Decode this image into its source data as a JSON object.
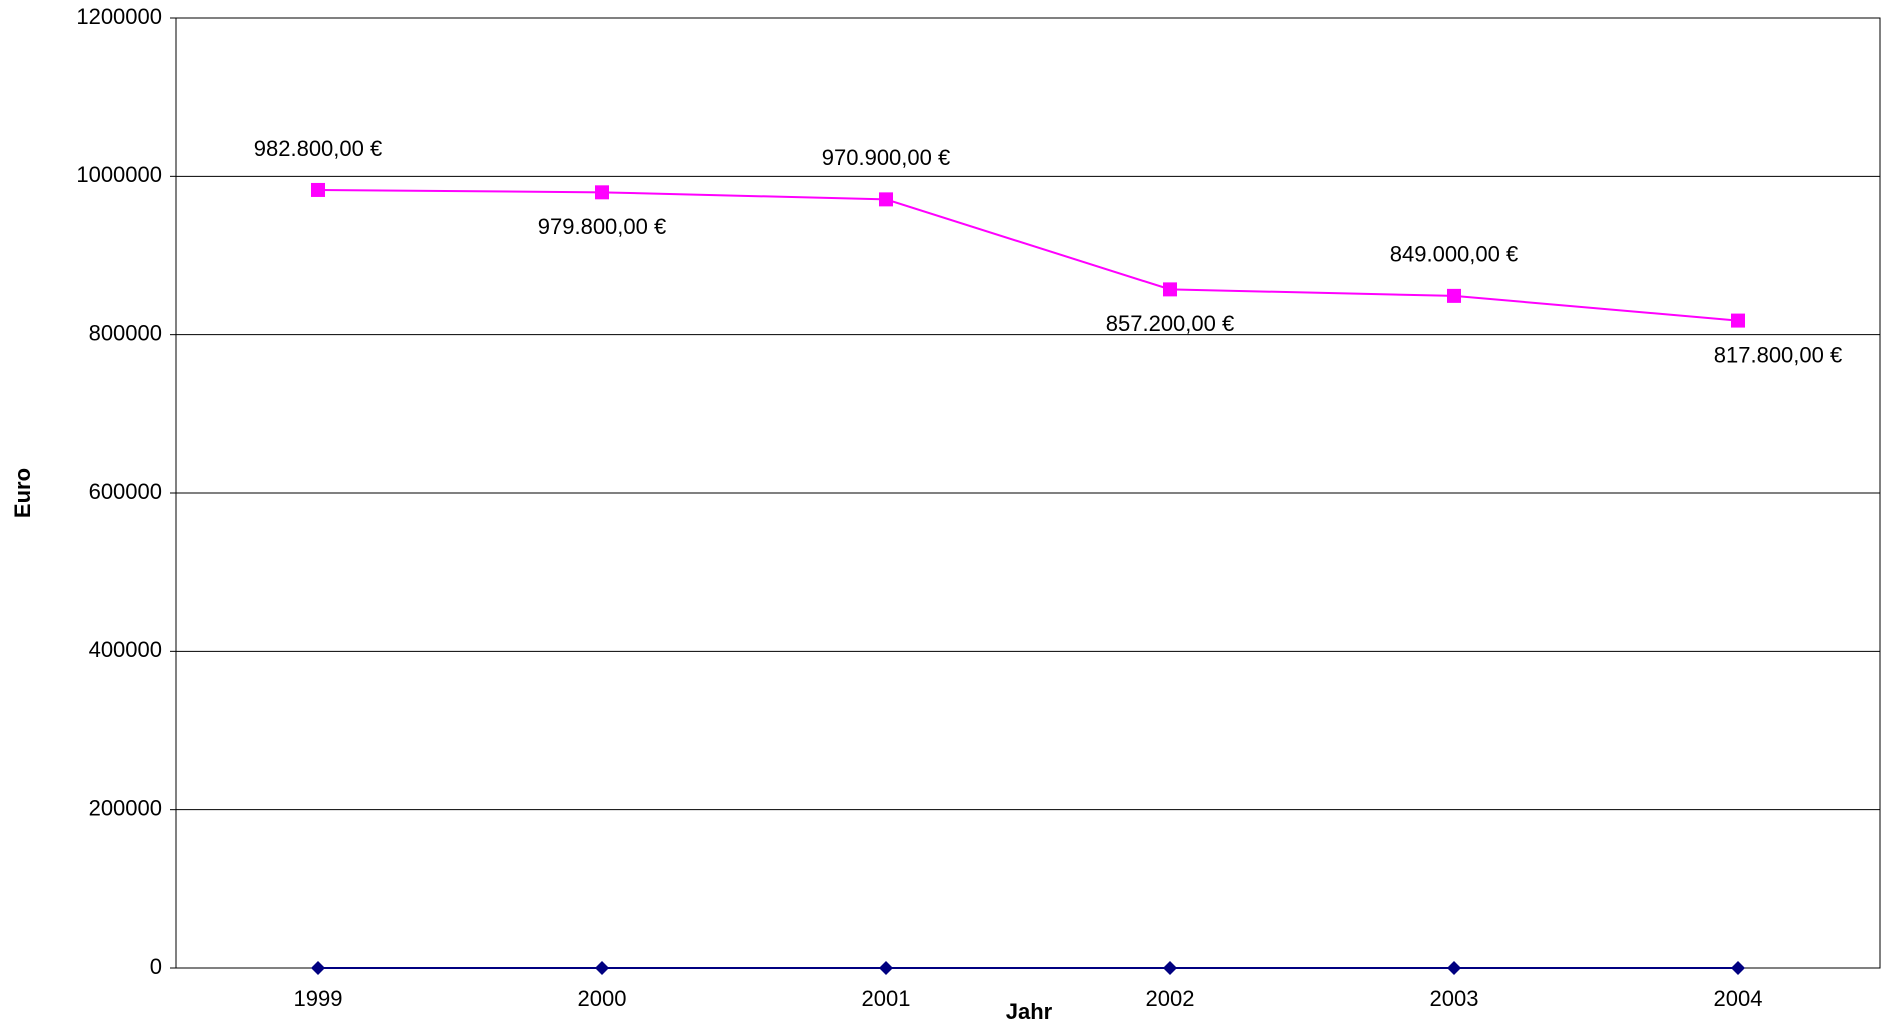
{
  "chart_data": {
    "type": "line",
    "x_label": "Jahr",
    "y_label": "Euro",
    "categories": [
      "1999",
      "2000",
      "2001",
      "2002",
      "2003",
      "2004"
    ],
    "series": [
      {
        "color": "#ff00ff",
        "marker": "square",
        "values": [
          982800,
          979800,
          970900,
          857200,
          849000,
          817800
        ],
        "value_labels": [
          "982.800,00 €",
          "979.800,00 €",
          "970.900,00 €",
          "857.200,00 €",
          "849.000,00 €",
          "817.800,00 €"
        ]
      },
      {
        "color": "#000080",
        "marker": "diamond",
        "values": [
          0,
          0,
          0,
          0,
          0,
          0
        ]
      }
    ],
    "ylim": [
      0,
      1200000
    ],
    "yticks": [
      0,
      200000,
      400000,
      600000,
      800000,
      1000000,
      1200000
    ],
    "grid": true
  }
}
